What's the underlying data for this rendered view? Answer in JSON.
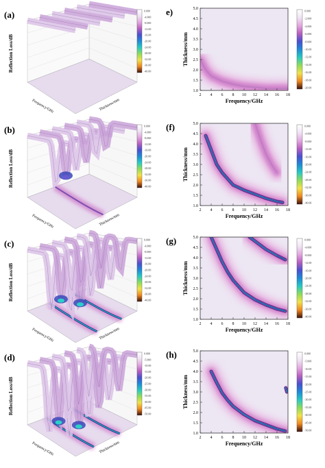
{
  "figure": {
    "left_panels": [
      {
        "letter": "(a)",
        "zlabel": "Reflection Loss/dB",
        "xlabel": "Frequency/GHz",
        "ylabel": "Thickness/mm",
        "colorbar_ticks": [
          "0.000",
          "-4.000",
          "-8.000",
          "-12.00",
          "-16.00",
          "-20.00",
          "-24.00",
          "-28.00",
          "-32.00",
          "-36.00",
          "-40.00"
        ],
        "depth": 0.18,
        "dip_curves": []
      },
      {
        "letter": "(b)",
        "zlabel": "Reflection Loss/dB",
        "xlabel": "Frequency/GHz",
        "ylabel": "Thickness/mm",
        "colorbar_ticks": [
          "0.000",
          "-4.000",
          "-8.000",
          "-12.00",
          "-16.00",
          "-20.00",
          "-24.00",
          "-28.00",
          "-32.00",
          "-36.00",
          "-40.00"
        ],
        "depth": 0.5,
        "dip_curves": [
          0.45
        ]
      },
      {
        "letter": "(c)",
        "zlabel": "Reflection Loss/dB",
        "xlabel": "Frequency/GHz",
        "ylabel": "Thickness/mm",
        "colorbar_ticks": [
          "0.000",
          "-4.000",
          "-8.000",
          "-12.00",
          "-16.00",
          "-20.00",
          "-24.00",
          "-28.00",
          "-32.00",
          "-36.00",
          "-40.00"
        ],
        "depth": 0.75,
        "dip_curves": [
          0.35,
          0.75
        ]
      },
      {
        "letter": "(d)",
        "zlabel": "Reflection Loss/dB",
        "xlabel": "Frequency/GHz",
        "ylabel": "Thickness/mm",
        "colorbar_ticks": [
          "0.000",
          "-5.000",
          "-10.00",
          "-15.00",
          "-20.00",
          "-25.00",
          "-30.00",
          "-35.00",
          "-40.00",
          "-45.00",
          "-50.00"
        ],
        "depth": 0.95,
        "dip_curves": [
          0.3,
          0.72
        ]
      }
    ],
    "right_panels": [
      {
        "letter": "e)",
        "xlabel": "Frequency/GHz",
        "ylabel": "Thickness/mm",
        "colorbar_ticks": [
          "0.000",
          "-2.000",
          "-4.000",
          "-6.000",
          "-8.000",
          "-10.00",
          "-12.00",
          "-14.00",
          "-16.00",
          "-18.00",
          "-20.00"
        ]
      },
      {
        "letter": "(f)",
        "xlabel": "Frequency/GHz",
        "ylabel": "Thickness/mm",
        "colorbar_ticks": [
          "0.000",
          "-4.000",
          "-8.000",
          "-12.00",
          "-16.00",
          "-20.00",
          "-24.00",
          "-28.00",
          "-32.00",
          "-36.00",
          "-40.00"
        ]
      },
      {
        "letter": "(g)",
        "xlabel": "Frequency/GHz",
        "ylabel": "Thickness/mm",
        "colorbar_ticks": [
          "0.000",
          "-4.000",
          "-8.000",
          "-12.00",
          "-16.00",
          "-20.00",
          "-24.00",
          "-28.00",
          "-32.00",
          "-36.00",
          "-40.00"
        ]
      },
      {
        "letter": "(h)",
        "xlabel": "Frequency/GHz",
        "ylabel": "Thickness/mm",
        "colorbar_ticks": [
          "0.000",
          "-5.000",
          "-10.00",
          "-15.00",
          "-20.00",
          "-25.00",
          "-30.00",
          "-35.00",
          "-40.00",
          "-45.00",
          "-50.00"
        ]
      }
    ]
  },
  "chart_data": [
    {
      "type": "heatmap",
      "panel": "(a)",
      "xlabel": "Frequency/GHz",
      "ylabel": "Thickness/mm",
      "zlabel": "Reflection Loss/dB",
      "z_min_approx": -6
    },
    {
      "type": "heatmap",
      "panel": "(b)",
      "xlabel": "Frequency/GHz",
      "ylabel": "Thickness/mm",
      "zlabel": "Reflection Loss/dB",
      "z_min_approx": -22
    },
    {
      "type": "heatmap",
      "panel": "(c)",
      "xlabel": "Frequency/GHz",
      "ylabel": "Thickness/mm",
      "zlabel": "Reflection Loss/dB",
      "z_min_approx": -30
    },
    {
      "type": "heatmap",
      "panel": "(d)",
      "xlabel": "Frequency/GHz",
      "ylabel": "Thickness/mm",
      "zlabel": "Reflection Loss/dB",
      "z_min_approx": -45
    },
    {
      "type": "heatmap",
      "panel": "e)",
      "xlabel": "Frequency/GHz",
      "ylabel": "Thickness/mm",
      "x_ticks": [
        2,
        4,
        6,
        8,
        10,
        12,
        14,
        16,
        18
      ],
      "y_ticks": [
        1.0,
        1.5,
        2.0,
        2.5,
        3.0,
        3.5,
        4.0,
        4.5,
        5.0
      ],
      "xlim": [
        2,
        18
      ],
      "ylim": [
        1.0,
        5.0
      ],
      "zlim": [
        -20,
        0
      ],
      "min_curves": [
        {
          "x": [
            2,
            3,
            4,
            6,
            8,
            10,
            12,
            14,
            16,
            18
          ],
          "y": [
            2.5,
            2.0,
            1.7,
            1.45,
            1.3,
            1.2,
            1.15,
            1.1,
            1.1,
            1.1
          ],
          "rl": -5
        }
      ]
    },
    {
      "type": "heatmap",
      "panel": "(f)",
      "xlabel": "Frequency/GHz",
      "ylabel": "Thickness/mm",
      "x_ticks": [
        2,
        4,
        6,
        8,
        10,
        12,
        14,
        16,
        18
      ],
      "y_ticks": [
        1.0,
        1.5,
        2.0,
        2.5,
        3.0,
        3.5,
        4.0,
        4.5,
        5.0
      ],
      "xlim": [
        2,
        18
      ],
      "ylim": [
        1.0,
        5.0
      ],
      "zlim": [
        -40,
        0
      ],
      "min_curves": [
        {
          "x": [
            3,
            4,
            5,
            6,
            7,
            8,
            10,
            12,
            14,
            16,
            17
          ],
          "y": [
            4.4,
            3.7,
            3.0,
            2.6,
            2.3,
            2.0,
            1.75,
            1.55,
            1.35,
            1.2,
            1.15
          ],
          "rl": -20
        },
        {
          "x": [
            12,
            13,
            14,
            15,
            16
          ],
          "y": [
            5.0,
            4.2,
            3.5,
            3.0,
            2.6
          ],
          "rl": -8
        }
      ]
    },
    {
      "type": "heatmap",
      "panel": "(g)",
      "xlabel": "Frequency/GHz",
      "ylabel": "Thickness/mm",
      "x_ticks": [
        2,
        4,
        6,
        8,
        10,
        12,
        14,
        16,
        18
      ],
      "y_ticks": [
        1.0,
        1.5,
        2.0,
        2.5,
        3.0,
        3.5,
        4.0,
        4.5,
        5.0
      ],
      "xlim": [
        2,
        18
      ],
      "ylim": [
        1.0,
        5.0
      ],
      "zlim": [
        -40,
        0
      ],
      "min_curves": [
        {
          "x": [
            4,
            5,
            6,
            7,
            8,
            10,
            12,
            14,
            16,
            17.5
          ],
          "y": [
            5.0,
            4.4,
            3.8,
            3.3,
            2.9,
            2.3,
            1.95,
            1.7,
            1.5,
            1.4
          ],
          "rl": -28
        },
        {
          "x": [
            11,
            12,
            13,
            14,
            15,
            16,
            17.5
          ],
          "y": [
            5.0,
            4.8,
            4.6,
            4.4,
            4.25,
            4.1,
            3.9
          ],
          "rl": -18
        }
      ]
    },
    {
      "type": "heatmap",
      "panel": "(h)",
      "xlabel": "Frequency/GHz",
      "ylabel": "Thickness/mm",
      "x_ticks": [
        2,
        4,
        6,
        8,
        10,
        12,
        14,
        16,
        18
      ],
      "y_ticks": [
        1.0,
        1.5,
        2.0,
        2.5,
        3.0,
        3.5,
        4.0,
        4.5,
        5.0
      ],
      "xlim": [
        2,
        18
      ],
      "ylim": [
        1.0,
        5.0
      ],
      "zlim": [
        -50,
        0
      ],
      "min_curves": [
        {
          "x": [
            4,
            5,
            6,
            7,
            8,
            10,
            12,
            14,
            16,
            17.5
          ],
          "y": [
            4.0,
            3.45,
            2.95,
            2.6,
            2.3,
            1.9,
            1.6,
            1.4,
            1.2,
            1.1
          ],
          "rl": -35
        },
        {
          "x": [
            17.6,
            17.8
          ],
          "y": [
            3.2,
            3.0
          ],
          "rl": -30
        }
      ]
    }
  ]
}
